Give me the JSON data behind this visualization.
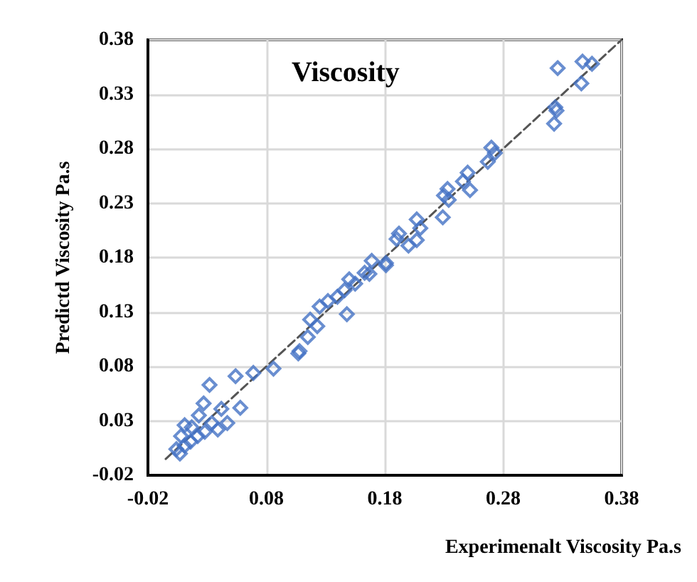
{
  "chart_data": {
    "type": "scatter",
    "title": "Viscosity",
    "xlabel": "Experimenalt Viscosity Pa.s",
    "ylabel": "Predictd Viscosity Pa.s",
    "xlim": [
      -0.02,
      0.38
    ],
    "xticks": [
      -0.02,
      0.08,
      0.18,
      0.28,
      0.38
    ],
    "ylim": [
      -0.02,
      0.38
    ],
    "yticks": [
      -0.02,
      0.03,
      0.08,
      0.13,
      0.18,
      0.23,
      0.28,
      0.33,
      0.38
    ],
    "grid": true,
    "marker": "diamond",
    "series": [
      {
        "color": "#4472c4",
        "x": [
          0.326,
          0.347,
          0.355,
          0.346,
          0.324,
          0.325,
          0.323,
          0.27,
          0.273,
          0.267,
          0.25,
          0.246,
          0.252,
          0.233,
          0.23,
          0.234,
          0.229,
          0.207,
          0.21,
          0.192,
          0.19,
          0.2,
          0.207,
          0.181,
          0.169,
          0.167,
          0.155,
          0.15,
          0.146,
          0.14,
          0.132,
          0.148,
          0.125,
          0.117,
          0.123,
          0.115,
          0.108,
          0.107,
          0.086,
          0.069,
          0.054,
          0.032,
          0.058,
          0.042,
          0.027,
          0.047,
          0.034,
          0.023,
          0.011,
          0.017,
          0.039,
          0.028,
          0.008,
          0.004,
          0.007,
          0.016,
          0.022,
          0.011,
          0.181,
          0.163
        ],
        "values": [
          0.354,
          0.36,
          0.358,
          0.34,
          0.318,
          0.315,
          0.303,
          0.281,
          0.276,
          0.268,
          0.258,
          0.25,
          0.242,
          0.243,
          0.237,
          0.233,
          0.217,
          0.215,
          0.207,
          0.202,
          0.197,
          0.191,
          0.196,
          0.175,
          0.177,
          0.165,
          0.156,
          0.16,
          0.15,
          0.144,
          0.14,
          0.128,
          0.135,
          0.123,
          0.117,
          0.107,
          0.094,
          0.092,
          0.078,
          0.074,
          0.071,
          0.063,
          0.042,
          0.041,
          0.046,
          0.028,
          0.028,
          0.035,
          0.026,
          0.024,
          0.022,
          0.02,
          0.016,
          0.004,
          0.0,
          0.011,
          0.016,
          0.007,
          0.173,
          0.166
        ]
      },
      {
        "type": "line",
        "color": "#555555",
        "line_style": "dashed",
        "marker": "none",
        "x": [
          -0.005,
          0.38
        ],
        "values": [
          -0.005,
          0.38
        ]
      }
    ]
  }
}
